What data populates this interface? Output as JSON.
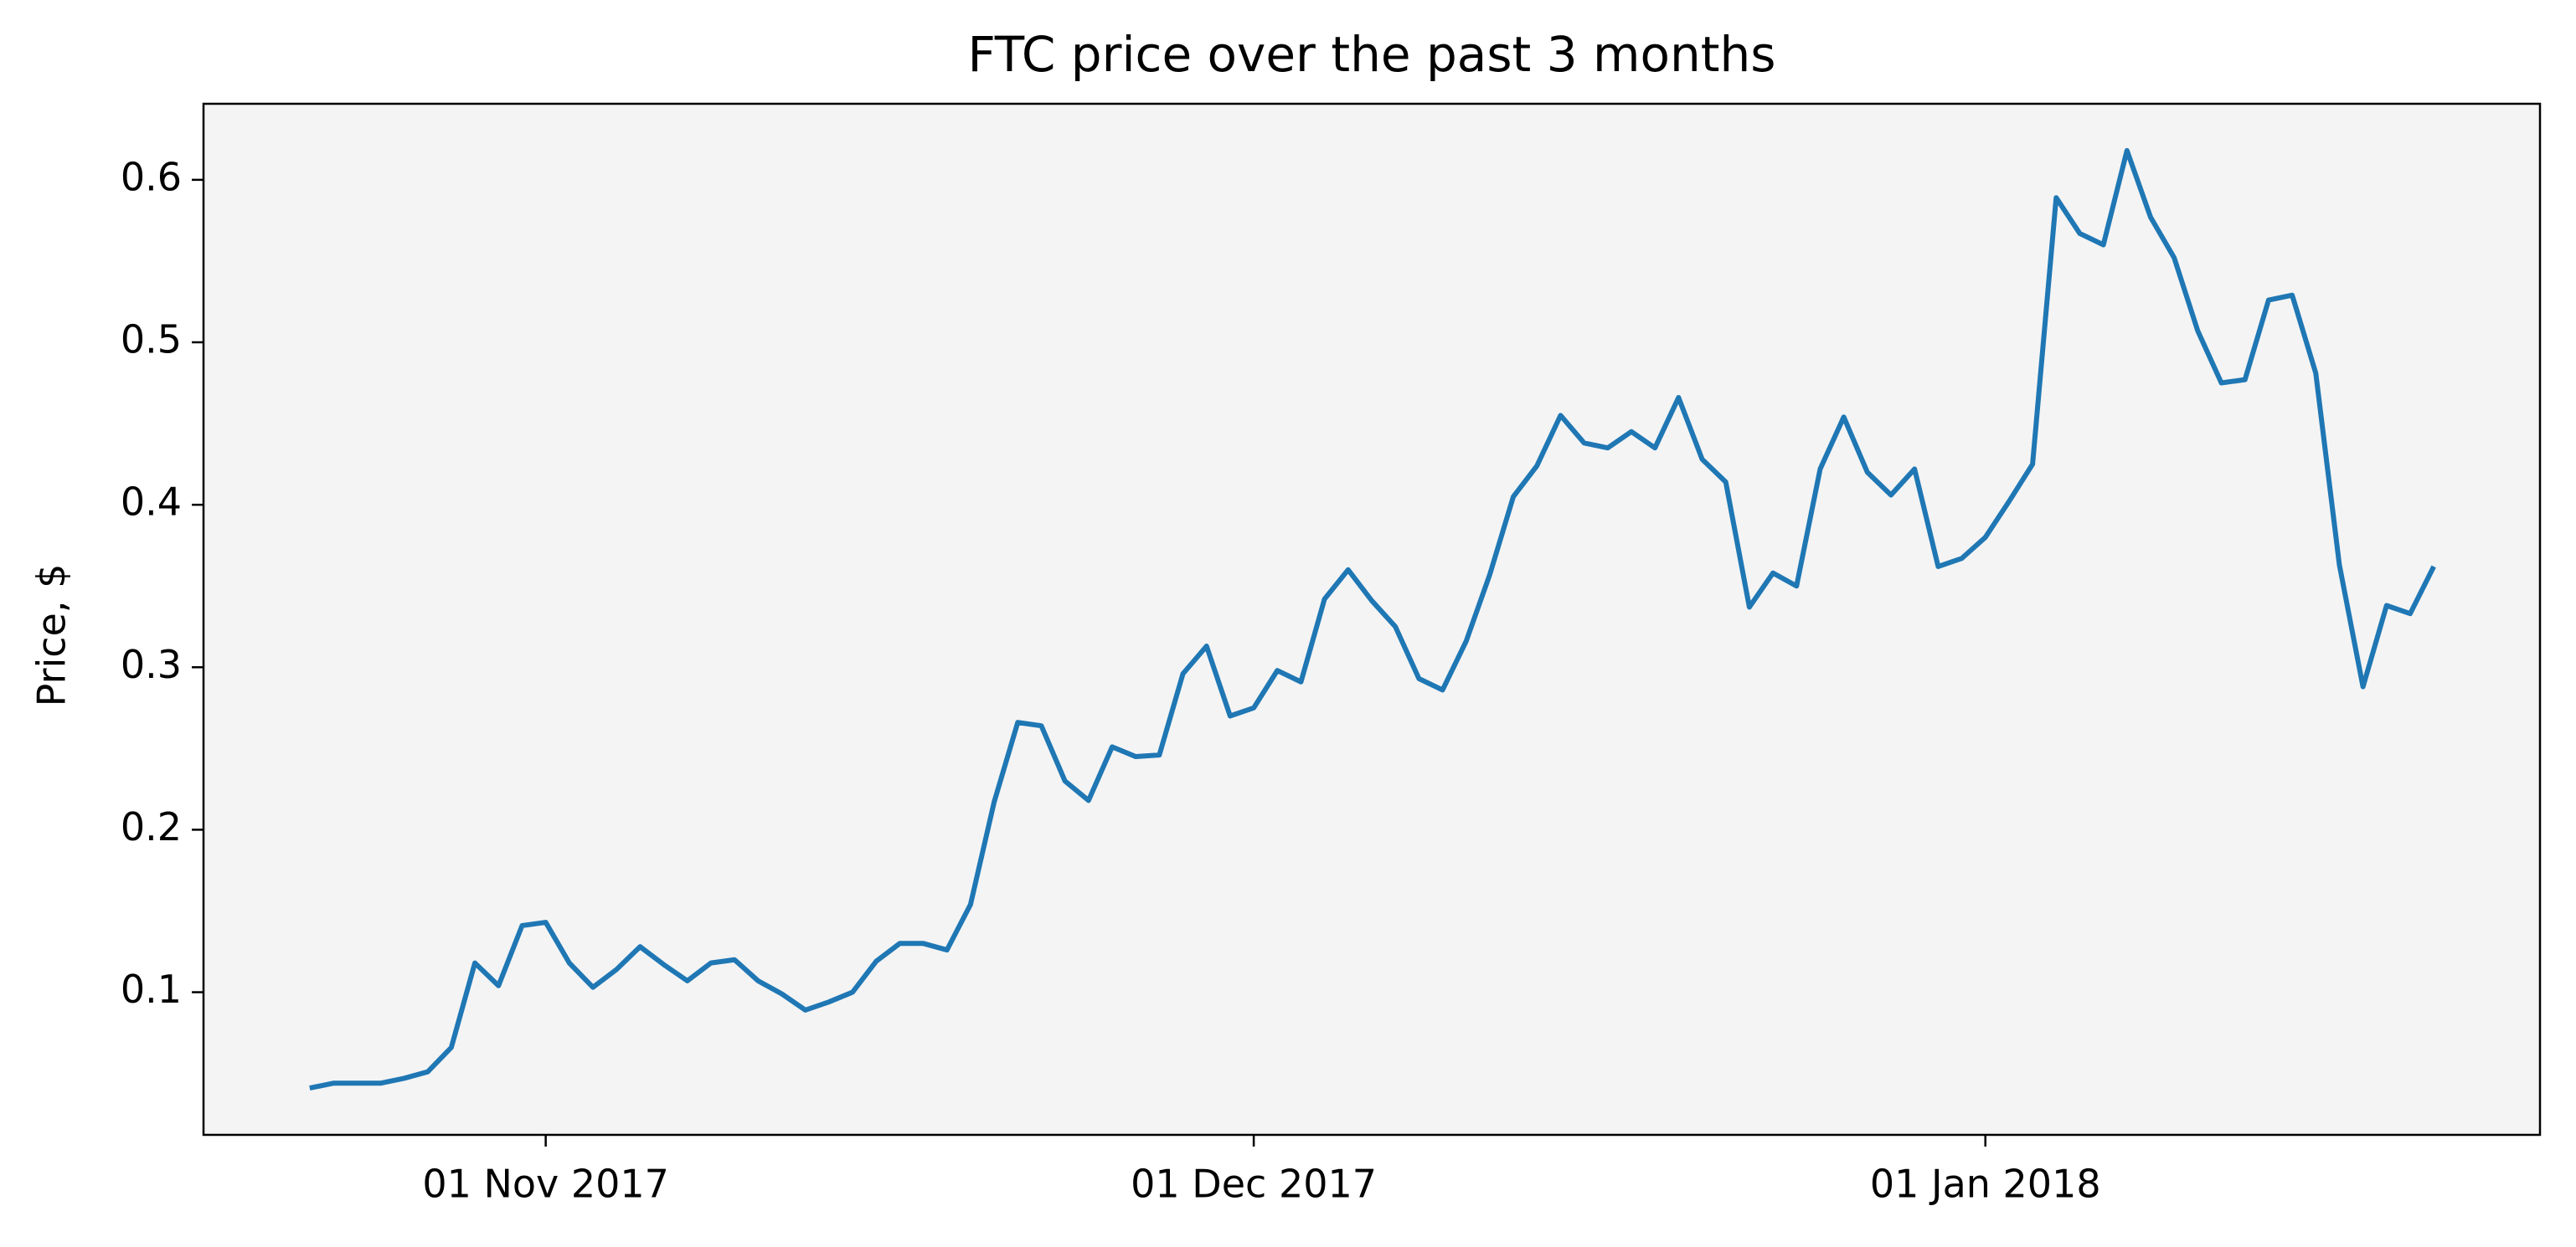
{
  "chart_data": {
    "type": "line",
    "title": "FTC price over the past 3 months",
    "y_label": "Price, $",
    "x": [
      "2017-10-22",
      "2017-10-23",
      "2017-10-24",
      "2017-10-25",
      "2017-10-26",
      "2017-10-27",
      "2017-10-28",
      "2017-10-29",
      "2017-10-30",
      "2017-10-31",
      "2017-11-01",
      "2017-11-02",
      "2017-11-03",
      "2017-11-04",
      "2017-11-05",
      "2017-11-06",
      "2017-11-07",
      "2017-11-08",
      "2017-11-09",
      "2017-11-10",
      "2017-11-11",
      "2017-11-12",
      "2017-11-13",
      "2017-11-14",
      "2017-11-15",
      "2017-11-16",
      "2017-11-17",
      "2017-11-18",
      "2017-11-19",
      "2017-11-20",
      "2017-11-21",
      "2017-11-22",
      "2017-11-23",
      "2017-11-24",
      "2017-11-25",
      "2017-11-26",
      "2017-11-27",
      "2017-11-28",
      "2017-11-29",
      "2017-11-30",
      "2017-12-01",
      "2017-12-02",
      "2017-12-03",
      "2017-12-04",
      "2017-12-05",
      "2017-12-06",
      "2017-12-07",
      "2017-12-08",
      "2017-12-09",
      "2017-12-10",
      "2017-12-11",
      "2017-12-12",
      "2017-12-13",
      "2017-12-14",
      "2017-12-15",
      "2017-12-16",
      "2017-12-17",
      "2017-12-18",
      "2017-12-19",
      "2017-12-20",
      "2017-12-21",
      "2017-12-22",
      "2017-12-23",
      "2017-12-24",
      "2017-12-25",
      "2017-12-26",
      "2017-12-27",
      "2017-12-28",
      "2017-12-29",
      "2017-12-30",
      "2017-12-31",
      "2018-01-01",
      "2018-01-02",
      "2018-01-03",
      "2018-01-04",
      "2018-01-05",
      "2018-01-06",
      "2018-01-07",
      "2018-01-08",
      "2018-01-09",
      "2018-01-10",
      "2018-01-11",
      "2018-01-12",
      "2018-01-13",
      "2018-01-14",
      "2018-01-15",
      "2018-01-16",
      "2018-01-17",
      "2018-01-18",
      "2018-01-19",
      "2018-01-20"
    ],
    "series": [
      {
        "color": "#1f77b4",
        "values": [
          0.041,
          0.044,
          0.044,
          0.044,
          0.047,
          0.051,
          0.066,
          0.118,
          0.104,
          0.141,
          0.143,
          0.118,
          0.103,
          0.114,
          0.128,
          0.117,
          0.107,
          0.118,
          0.12,
          0.107,
          0.099,
          0.089,
          0.094,
          0.1,
          0.119,
          0.13,
          0.13,
          0.126,
          0.154,
          0.217,
          0.266,
          0.264,
          0.23,
          0.218,
          0.251,
          0.245,
          0.246,
          0.296,
          0.313,
          0.27,
          0.275,
          0.298,
          0.291,
          0.342,
          0.36,
          0.341,
          0.325,
          0.293,
          0.286,
          0.316,
          0.357,
          0.405,
          0.424,
          0.455,
          0.438,
          0.435,
          0.445,
          0.435,
          0.466,
          0.428,
          0.414,
          0.337,
          0.358,
          0.35,
          0.422,
          0.454,
          0.42,
          0.406,
          0.422,
          0.362,
          0.367,
          0.38,
          0.402,
          0.425,
          0.589,
          0.567,
          0.56,
          0.618,
          0.577,
          0.552,
          0.507,
          0.475,
          0.477,
          0.526,
          0.529,
          0.481,
          0.363,
          0.288,
          0.338,
          0.333,
          0.362
        ]
      }
    ],
    "xlim": [
      "2017-10-17T12:00:00Z",
      "2018-01-24T12:00:00Z"
    ],
    "xticks": [
      {
        "value": "2017-11-01",
        "label": "01 Nov 2017"
      },
      {
        "value": "2017-12-01",
        "label": "01 Dec 2017"
      },
      {
        "value": "2018-01-01",
        "label": "01 Jan 2018"
      }
    ],
    "ylim": [
      0.0122,
      0.6468
    ],
    "yticks": [
      0.1,
      0.2,
      0.3,
      0.4,
      0.5,
      0.6
    ],
    "background": "#f4f4f4"
  }
}
